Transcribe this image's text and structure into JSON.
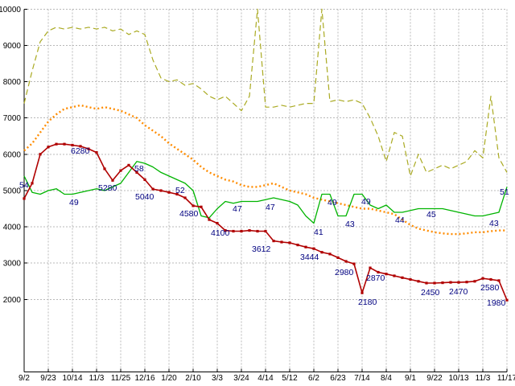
{
  "chart_data": {
    "type": "line",
    "title": "",
    "grid": true,
    "legend": "none",
    "ylim": [
      0,
      10000
    ],
    "points_per_tick": 3,
    "x_tick_labels": [
      "9/2",
      "9/23",
      "10/14",
      "11/3",
      "11/25",
      "12/16",
      "1/20",
      "2/10",
      "3/3",
      "3/24",
      "4/14",
      "5/12",
      "6/2",
      "6/23",
      "7/14",
      "8/4",
      "9/1",
      "9/22",
      "10/13",
      "11/3",
      "11/17"
    ],
    "y_tick_labels": [
      "2000",
      "3000",
      "4000",
      "5000",
      "6000",
      "7000",
      "8000",
      "9000",
      "10000"
    ],
    "y_tick_values": [
      2000,
      3000,
      4000,
      5000,
      6000,
      7000,
      8000,
      9000,
      10000
    ],
    "label_color": "#000080",
    "grid_color": "#b8b8b8",
    "axis_color": "#000000",
    "series": [
      {
        "name": "olive_dashed",
        "color": "#aaaa22",
        "style": "dashed",
        "values": [
          7400,
          8300,
          9100,
          9400,
          9500,
          9450,
          9500,
          9450,
          9500,
          9450,
          9500,
          9400,
          9450,
          9300,
          9400,
          9300,
          8600,
          8100,
          8000,
          8050,
          7900,
          7950,
          7800,
          7600,
          7500,
          7600,
          7400,
          7200,
          7600,
          10000,
          7300,
          7300,
          7350,
          7300,
          7350,
          7400,
          7400,
          10000,
          7450,
          7500,
          7450,
          7500,
          7400,
          7000,
          6500,
          5800,
          6600,
          6500,
          5400,
          6000,
          5500,
          5600,
          5700,
          5600,
          5700,
          5800,
          6100,
          5900,
          7600,
          5900,
          5500
        ]
      },
      {
        "name": "orange_dotted",
        "color": "#ff8c00",
        "style": "dotted",
        "values": [
          6100,
          6300,
          6600,
          6900,
          7100,
          7250,
          7300,
          7350,
          7300,
          7250,
          7300,
          7250,
          7200,
          7100,
          7000,
          6800,
          6650,
          6500,
          6300,
          6150,
          6000,
          5850,
          5650,
          5500,
          5400,
          5300,
          5250,
          5150,
          5100,
          5100,
          5150,
          5200,
          5100,
          5000,
          4950,
          4900,
          4800,
          4750,
          4700,
          4650,
          4600,
          4550,
          4500,
          4500,
          4450,
          4400,
          4350,
          4200,
          4050,
          3950,
          3900,
          3850,
          3820,
          3800,
          3800,
          3820,
          3850,
          3850,
          3880,
          3900,
          3900
        ]
      },
      {
        "name": "green_solid",
        "color": "#00b400",
        "style": "solid",
        "values": [
          5400,
          4950,
          4900,
          5000,
          5050,
          4900,
          4900,
          4950,
          5000,
          5050,
          5000,
          5100,
          5200,
          5500,
          5800,
          5750,
          5650,
          5500,
          5400,
          5300,
          5200,
          5000,
          4300,
          4250,
          4500,
          4700,
          4650,
          4700,
          4700,
          4700,
          4750,
          4800,
          4750,
          4700,
          4600,
          4300,
          4100,
          4900,
          4900,
          4300,
          4300,
          4900,
          4900,
          4600,
          4500,
          4600,
          4400,
          4400,
          4450,
          4500,
          4500,
          4500,
          4500,
          4450,
          4400,
          4350,
          4300,
          4300,
          4350,
          4400,
          5100
        ]
      },
      {
        "name": "red_squares",
        "color": "#b00000",
        "style": "solid-squares",
        "values": [
          4780,
          5200,
          6000,
          6200,
          6280,
          6280,
          6250,
          6220,
          6150,
          6050,
          5600,
          5280,
          5550,
          5700,
          5500,
          5300,
          5040,
          5000,
          4950,
          4900,
          4800,
          4580,
          4550,
          4200,
          4100,
          3900,
          3880,
          3880,
          3900,
          3880,
          3880,
          3612,
          3580,
          3560,
          3500,
          3444,
          3400,
          3300,
          3250,
          3150,
          3050,
          2980,
          2180,
          2870,
          2750,
          2700,
          2650,
          2600,
          2550,
          2500,
          2450,
          2450,
          2460,
          2470,
          2470,
          2480,
          2500,
          2580,
          2550,
          2520,
          1980
        ]
      }
    ],
    "point_labels": [
      {
        "text": "54",
        "xi": -0.6,
        "v": 5080
      },
      {
        "text": "6280",
        "xi": 5.8,
        "v": 6020
      },
      {
        "text": "49",
        "xi": 5.6,
        "v": 4600
      },
      {
        "text": "5280",
        "xi": 9.2,
        "v": 5000
      },
      {
        "text": "58",
        "xi": 13.7,
        "v": 5530
      },
      {
        "text": "5040",
        "xi": 13.8,
        "v": 4760
      },
      {
        "text": "52",
        "xi": 18.8,
        "v": 4930
      },
      {
        "text": "4580",
        "xi": 19.3,
        "v": 4290
      },
      {
        "text": "4100",
        "xi": 23.2,
        "v": 3760
      },
      {
        "text": "47",
        "xi": 25.9,
        "v": 4420
      },
      {
        "text": "3612",
        "xi": 28.3,
        "v": 3320
      },
      {
        "text": "47",
        "xi": 30.0,
        "v": 4470
      },
      {
        "text": "3444",
        "xi": 34.3,
        "v": 3090
      },
      {
        "text": "41",
        "xi": 36.0,
        "v": 3780
      },
      {
        "text": "49",
        "xi": 37.7,
        "v": 4600
      },
      {
        "text": "43",
        "xi": 39.9,
        "v": 4000
      },
      {
        "text": "2980",
        "xi": 38.6,
        "v": 2670
      },
      {
        "text": "49",
        "xi": 41.9,
        "v": 4620
      },
      {
        "text": "2180",
        "xi": 41.5,
        "v": 1850
      },
      {
        "text": "2870",
        "xi": 42.5,
        "v": 2520
      },
      {
        "text": "44",
        "xi": 46.1,
        "v": 4110
      },
      {
        "text": "2450",
        "xi": 49.3,
        "v": 2120
      },
      {
        "text": "45",
        "xi": 50.0,
        "v": 4270
      },
      {
        "text": "2470",
        "xi": 52.8,
        "v": 2140
      },
      {
        "text": "2580",
        "xi": 56.7,
        "v": 2250
      },
      {
        "text": "43",
        "xi": 57.8,
        "v": 4020
      },
      {
        "text": "51",
        "xi": 59.1,
        "v": 4887
      },
      {
        "text": "1980",
        "xi": 57.5,
        "v": 1830
      }
    ]
  }
}
